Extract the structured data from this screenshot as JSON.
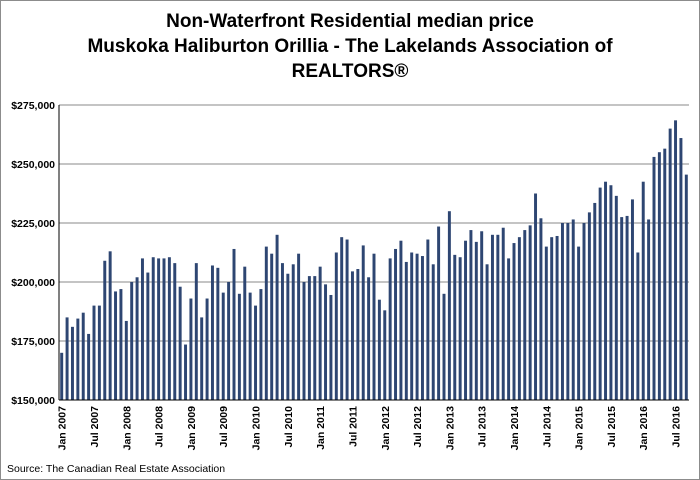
{
  "chart_data": {
    "type": "bar",
    "title": "Non-Waterfront Residential median price\nMuskoka Haliburton Orillia - The Lakelands Association of\nREALTORS®",
    "title_lines": [
      "Non-Waterfront Residential median price",
      "Muskoka Haliburton Orillia - The Lakelands Association of",
      "REALTORS®"
    ],
    "xlabel": "",
    "ylabel": "",
    "ylim": [
      150000,
      275000
    ],
    "y_ticks": [
      150000,
      175000,
      200000,
      225000,
      250000,
      275000
    ],
    "y_tick_labels": [
      "$150,000",
      "$175,000",
      "$200,000",
      "$225,000",
      "$250,000",
      "$275,000"
    ],
    "x_tick_labels": [
      {
        "index": 0,
        "label": "Jan 2007"
      },
      {
        "index": 6,
        "label": "Jul 2007"
      },
      {
        "index": 12,
        "label": "Jan 2008"
      },
      {
        "index": 18,
        "label": "Jul 2008"
      },
      {
        "index": 24,
        "label": "Jan 2009"
      },
      {
        "index": 30,
        "label": "Jul 2009"
      },
      {
        "index": 36,
        "label": "Jan 2010"
      },
      {
        "index": 42,
        "label": "Jul 2010"
      },
      {
        "index": 48,
        "label": "Jan 2011"
      },
      {
        "index": 54,
        "label": "Jul 2011"
      },
      {
        "index": 60,
        "label": "Jan 2012"
      },
      {
        "index": 66,
        "label": "Jul 2012"
      },
      {
        "index": 72,
        "label": "Jan 2013"
      },
      {
        "index": 78,
        "label": "Jul 2013"
      },
      {
        "index": 84,
        "label": "Jan 2014"
      },
      {
        "index": 90,
        "label": "Jul 2014"
      },
      {
        "index": 96,
        "label": "Jan 2015"
      },
      {
        "index": 102,
        "label": "Jul 2015"
      },
      {
        "index": 108,
        "label": "Jan 2016"
      },
      {
        "index": 114,
        "label": "Jul 2016"
      }
    ],
    "grid": true,
    "bar_color": "#2e4672",
    "values": [
      170000,
      185000,
      181000,
      184500,
      187000,
      178000,
      190000,
      190000,
      209000,
      213000,
      196000,
      197000,
      183500,
      200000,
      202000,
      210000,
      204000,
      210500,
      210000,
      210000,
      210500,
      208000,
      198000,
      173500,
      193000,
      208000,
      185000,
      193000,
      207000,
      206000,
      195500,
      200000,
      214000,
      195000,
      206500,
      195500,
      190000,
      197000,
      215000,
      212000,
      220000,
      208000,
      203500,
      207500,
      212000,
      200000,
      202500,
      202500,
      206500,
      199000,
      194500,
      212500,
      219000,
      218000,
      204500,
      205500,
      215500,
      202000,
      212000,
      192500,
      188000,
      210000,
      214000,
      217500,
      208500,
      212500,
      212000,
      211000,
      218000,
      207500,
      223500,
      195000,
      230000,
      211500,
      210500,
      217500,
      222000,
      217000,
      221500,
      207500,
      220000,
      220000,
      223000,
      210000,
      216500,
      219000,
      222000,
      224000,
      237500,
      227000,
      215000,
      219000,
      219500,
      225000,
      225000,
      226500,
      215000,
      225000,
      229500,
      233500,
      240000,
      242500,
      241000,
      236500,
      227500,
      228000,
      235000,
      212500,
      242500,
      226500,
      253000,
      255000,
      256500,
      265000,
      268500,
      261000,
      245500
    ]
  },
  "source": "Source: The Canadian Real Estate Association"
}
